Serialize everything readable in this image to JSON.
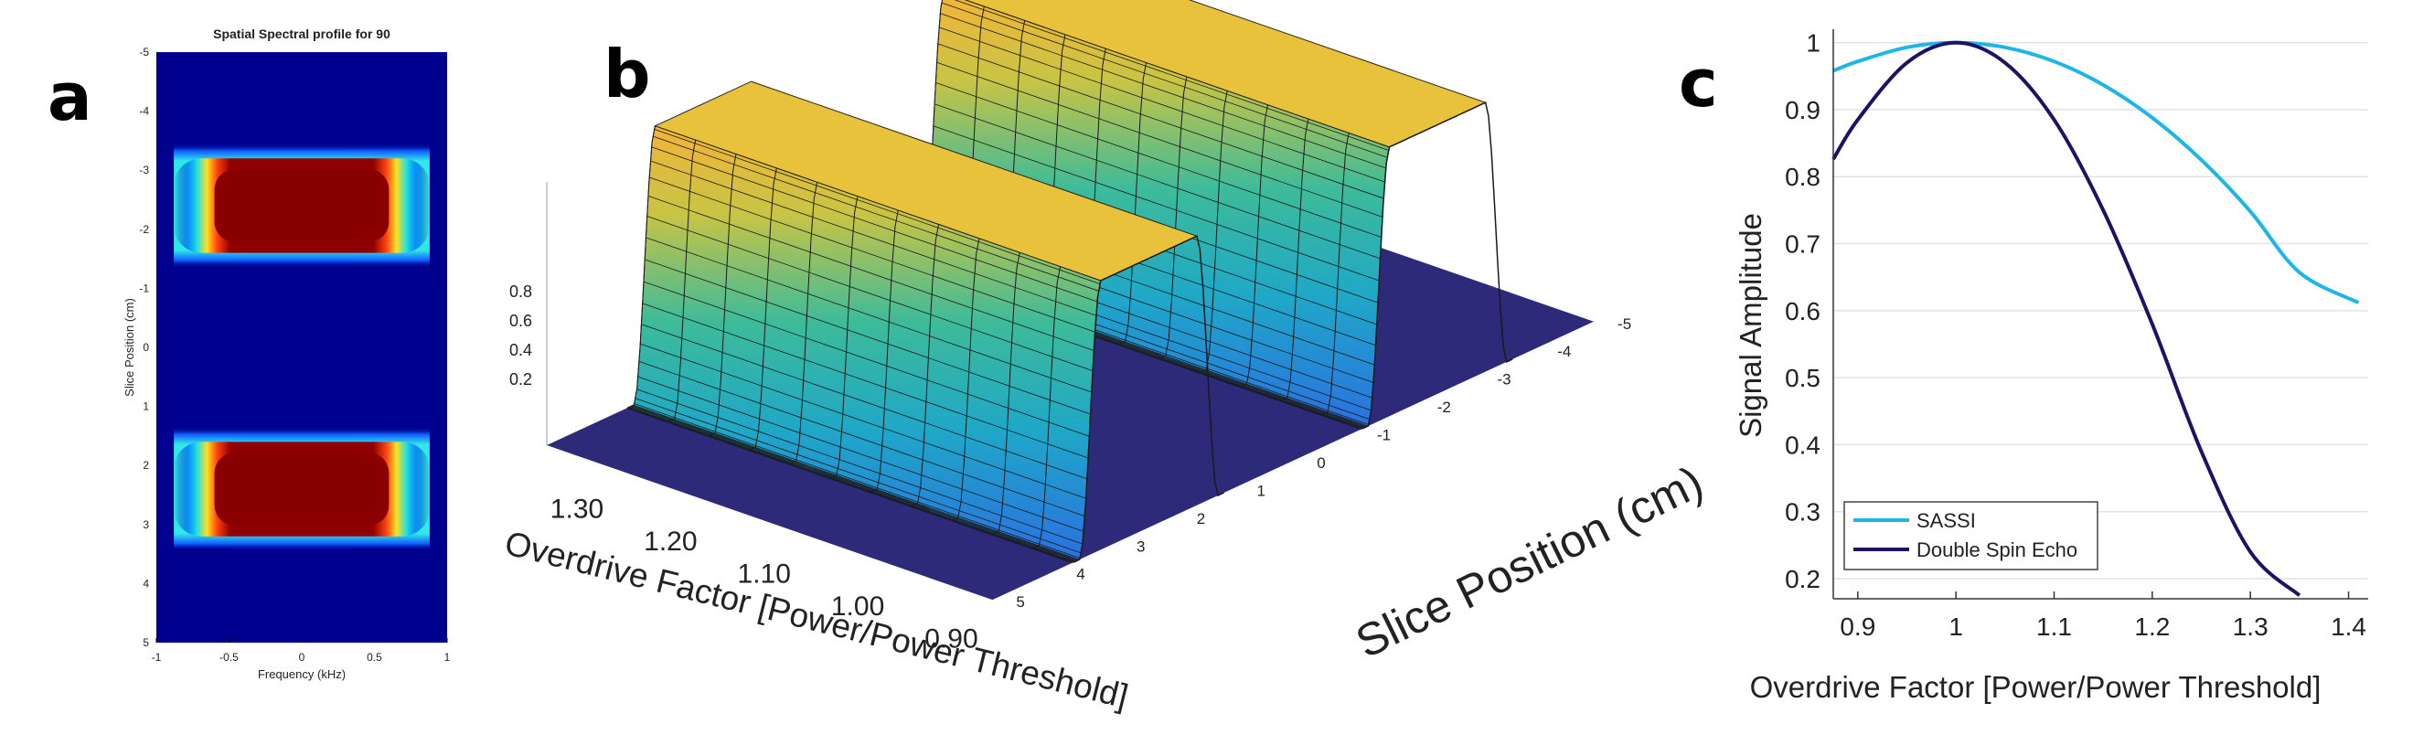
{
  "panel_labels": [
    "a",
    "b",
    "c"
  ],
  "colors": {
    "sassi": "#1EB6E8",
    "double_spin_echo": "#1B1464",
    "heat_background": "#00008F",
    "heat_core": "#800000",
    "surface_base": "#2E2A7A"
  },
  "chart_data": [
    {
      "panel": "a",
      "type": "heatmap",
      "title": "Spatial Spectral profile for 90",
      "xlabel": "Frequency (kHz)",
      "ylabel": "Slice Position (cm)",
      "xlim": [
        -1,
        1
      ],
      "ylim": [
        -5,
        5
      ],
      "y_inverted": true,
      "x_ticks": [
        "-1",
        "-0.5",
        "0",
        "0.5",
        "1"
      ],
      "y_ticks": [
        "-5",
        "-4",
        "-3",
        "-2",
        "-1",
        "0",
        "1",
        "2",
        "3",
        "4",
        "5"
      ],
      "bands": [
        {
          "slice_center": -2.4,
          "slice_halfwidth": 0.8,
          "freq_halfwidth": 0.75
        },
        {
          "slice_center": 2.4,
          "slice_halfwidth": 0.8,
          "freq_halfwidth": 0.75
        }
      ]
    },
    {
      "panel": "b",
      "type": "surface",
      "xlabel": "Overdrive Factor [Power/Power Threshold]",
      "ylabel": "Slice Position (cm)",
      "x_ticks": [
        "1.30",
        "1.20",
        "1.10",
        "1.00",
        "0.90"
      ],
      "y_ticks": [
        "-5",
        "-4",
        "-3",
        "-2",
        "-1",
        "0",
        "1",
        "2",
        "3",
        "4",
        "5"
      ],
      "z_ticks": [
        "0.2",
        "0.4",
        "0.6",
        "0.8"
      ],
      "zlim": [
        0,
        1
      ],
      "overdrive_range": [
        0.9,
        1.3
      ],
      "peaks": [
        {
          "slice_center": -2.4,
          "slice_halfwidth": 0.8
        },
        {
          "slice_center": 2.4,
          "slice_halfwidth": 0.8
        }
      ]
    },
    {
      "panel": "c",
      "type": "line",
      "xlabel": "Overdrive Factor [Power/Power Threshold]",
      "ylabel": "Signal Amplitude",
      "xlim": [
        0.875,
        1.42
      ],
      "ylim": [
        0.17,
        1.02
      ],
      "x_ticks": [
        "0.9",
        "1",
        "1.1",
        "1.2",
        "1.3",
        "1.4"
      ],
      "y_ticks": [
        "0.2",
        "0.3",
        "0.4",
        "0.5",
        "0.6",
        "0.7",
        "0.8",
        "0.9",
        "1"
      ],
      "grid": "horizontal",
      "legend_position": "bottom-left",
      "series": [
        {
          "name": "SASSI",
          "x": [
            0.875,
            0.9,
            0.95,
            1.0,
            1.05,
            1.1,
            1.15,
            1.2,
            1.25,
            1.3,
            1.35,
            1.41
          ],
          "values": [
            0.958,
            0.972,
            0.993,
            1.0,
            0.993,
            0.972,
            0.937,
            0.888,
            0.825,
            0.748,
            0.657,
            0.612
          ]
        },
        {
          "name": "Double Spin Echo",
          "x": [
            0.875,
            0.9,
            0.95,
            1.0,
            1.05,
            1.1,
            1.15,
            1.2,
            1.25,
            1.3,
            1.35
          ],
          "values": [
            0.826,
            0.885,
            0.97,
            1.0,
            0.97,
            0.885,
            0.75,
            0.58,
            0.39,
            0.24,
            0.175
          ]
        }
      ]
    }
  ]
}
